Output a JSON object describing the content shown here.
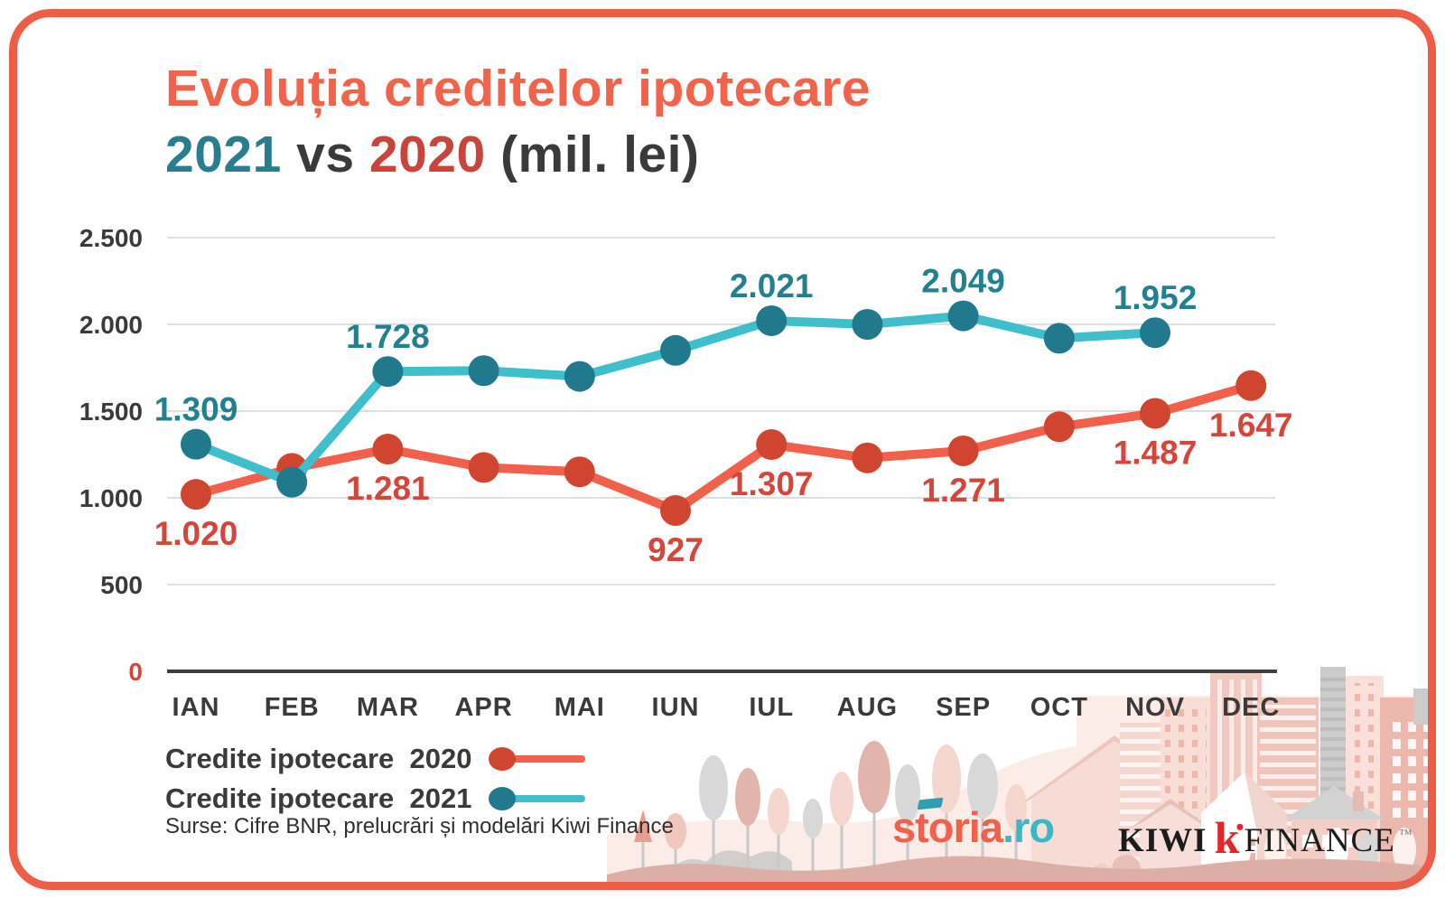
{
  "title": {
    "line1": "Evoluția creditelor ipotecare",
    "year_teal": "2021",
    "vs": "vs",
    "year_red": "2020",
    "suffix": "(mil. lei)"
  },
  "colors": {
    "accent_coral": "#F2634B",
    "teal_dark": "#2A7D8E",
    "red_dark": "#C8453E",
    "text_dark": "#3A3A3A",
    "gridline": "#DEDEDE",
    "zero_label": "#D6453A"
  },
  "chart_data": {
    "type": "line",
    "title": "Evoluția creditelor ipotecare 2021 vs 2020 (mil. lei)",
    "categories": [
      "IAN",
      "FEB",
      "MAR",
      "APR",
      "MAI",
      "IUN",
      "IUL",
      "AUG",
      "SEP",
      "OCT",
      "NOV",
      "DEC"
    ],
    "y_ticks": [
      "2.500",
      "2.000",
      "1.500",
      "1.000",
      "500",
      "0"
    ],
    "y_tick_values": [
      2500,
      2000,
      1500,
      1000,
      500,
      0
    ],
    "ylim": [
      0,
      2500
    ],
    "grid": true,
    "legend_position": "bottom-left",
    "series": [
      {
        "name": "Credite ipotecare 2020",
        "line_color": "#F0604A",
        "dot_color": "#D0452F",
        "label_color": "#D6453A",
        "label_side": "below",
        "values": [
          1020,
          1170,
          1281,
          1175,
          1150,
          927,
          1307,
          1230,
          1271,
          1410,
          1487,
          1647
        ],
        "labels": [
          "1.020",
          null,
          "1.281",
          null,
          null,
          "927",
          "1.307",
          null,
          "1.271",
          null,
          "1.487",
          "1.647"
        ]
      },
      {
        "name": "Credite ipotecare 2021",
        "line_color": "#3FBECB",
        "dot_color": "#20798C",
        "label_color": "#22808F",
        "label_side": "above",
        "values": [
          1309,
          1090,
          1728,
          1733,
          1700,
          1850,
          2021,
          2000,
          2049,
          1920,
          1952,
          null
        ],
        "labels": [
          "1.309",
          null,
          "1.728",
          null,
          null,
          null,
          "2.021",
          null,
          "2.049",
          null,
          "1.952",
          null
        ]
      }
    ]
  },
  "legend": {
    "items": [
      {
        "label": "Credite ipotecare  2020"
      },
      {
        "label": "Credite ipotecare  2021"
      }
    ]
  },
  "footer": {
    "source": "Surse: Cifre BNR, prelucrări și modelări Kiwi Finance"
  },
  "logos": {
    "storia": "storia",
    "storia_suffix": ".ro",
    "kiwi": "KIWI",
    "kiwi_k": "k",
    "finance": "FINANCE",
    "tm": "™"
  }
}
